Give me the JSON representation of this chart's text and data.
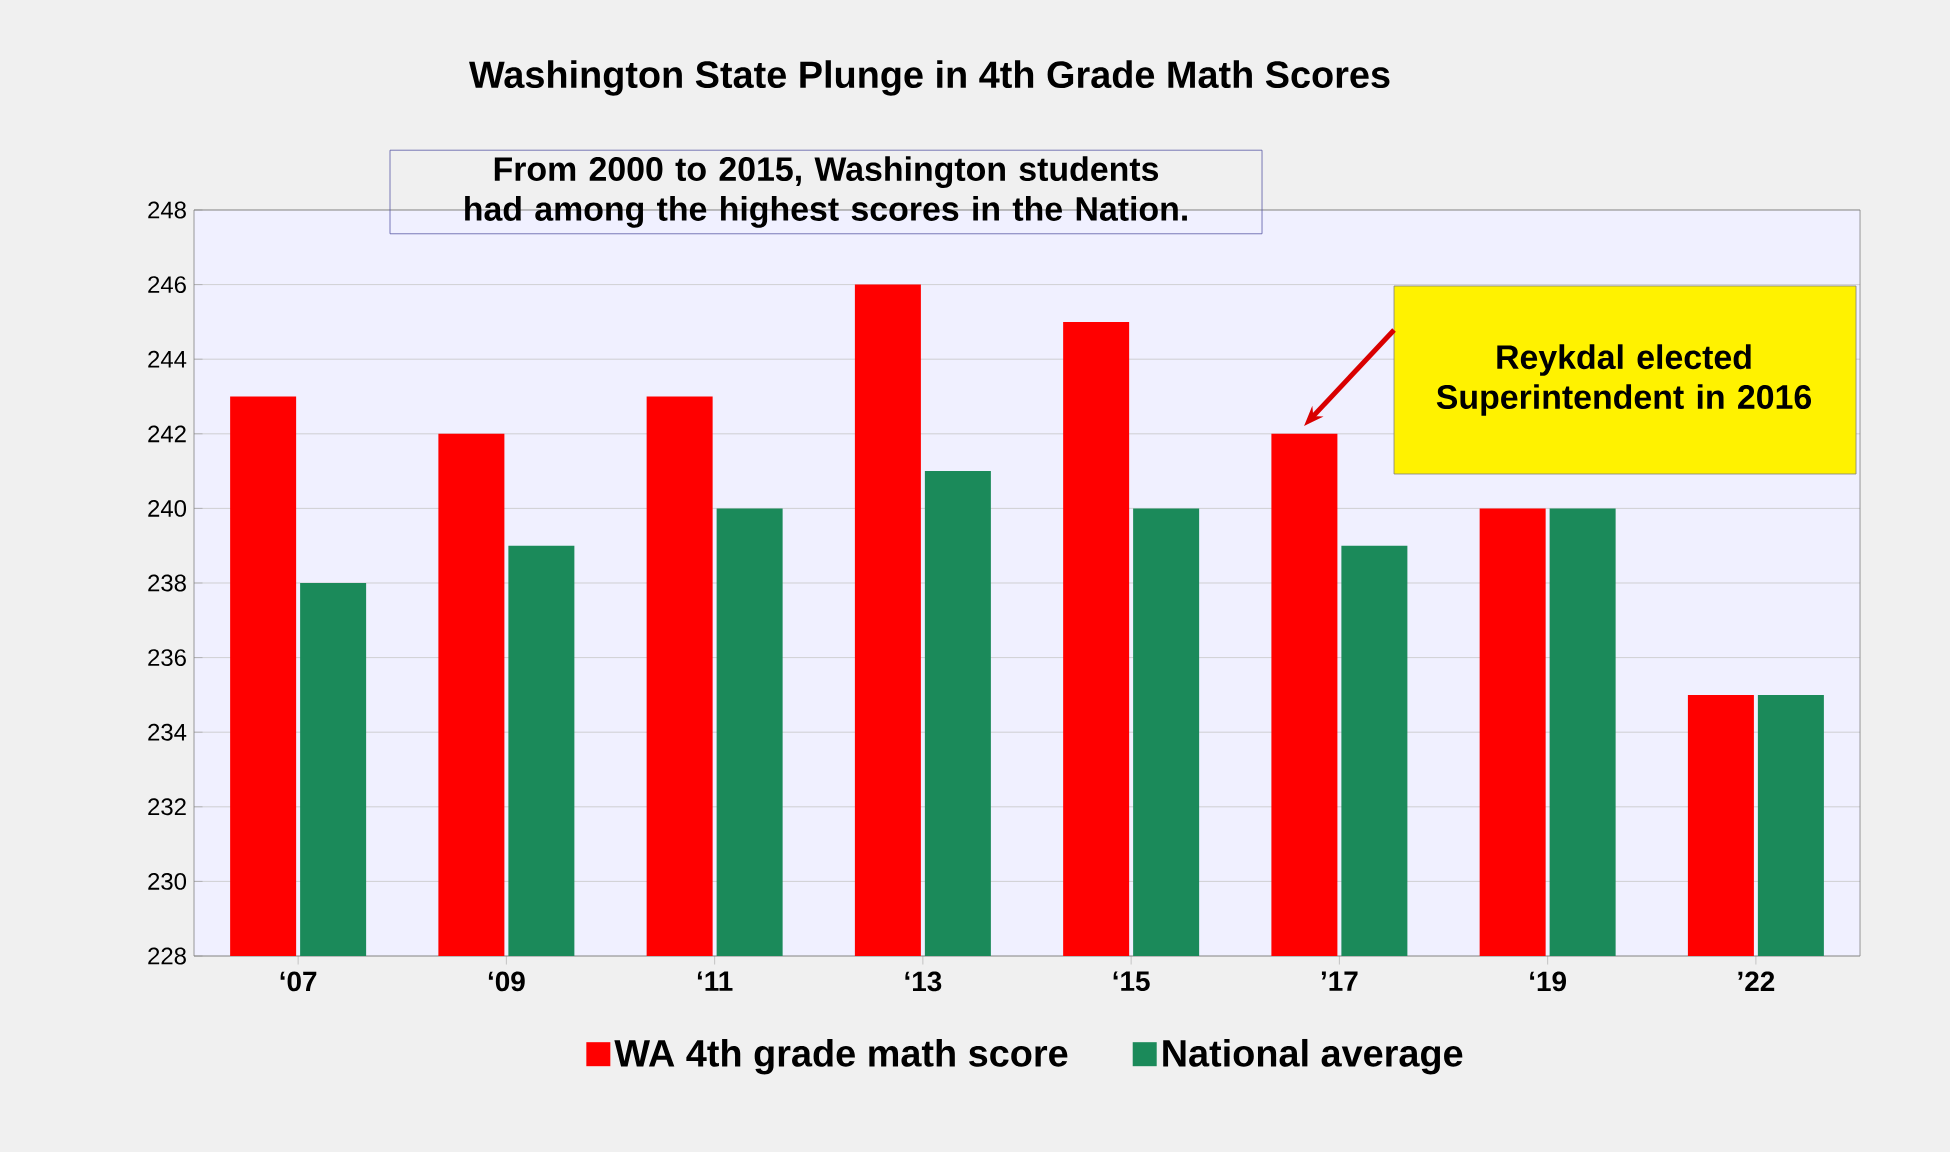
{
  "chart_data": {
    "type": "bar",
    "title": "Washington State Plunge in 4th Grade Math Scores",
    "subtitle": "From 2000 to 2015, Washington students had among the highest scores in the Nation.",
    "categories": [
      "‘07",
      "‘09",
      "‘11",
      "‘13",
      "‘15",
      "’17",
      "‘19",
      "’22"
    ],
    "series": [
      {
        "name": "WA 4th grade math score",
        "color": "#ff0000",
        "values": [
          243,
          242,
          243,
          246,
          245,
          242,
          240,
          235
        ]
      },
      {
        "name": "National average",
        "color": "#1b8a5a",
        "values": [
          238,
          239,
          240,
          241,
          240,
          239,
          240,
          235
        ]
      }
    ],
    "ylim": [
      228,
      248
    ],
    "yticks": [
      228,
      230,
      232,
      234,
      236,
      238,
      240,
      242,
      244,
      246,
      248
    ],
    "grid": "y",
    "legend": "bottom",
    "annotations": [
      "Reykdal elected Superintendent in 2016"
    ]
  }
}
